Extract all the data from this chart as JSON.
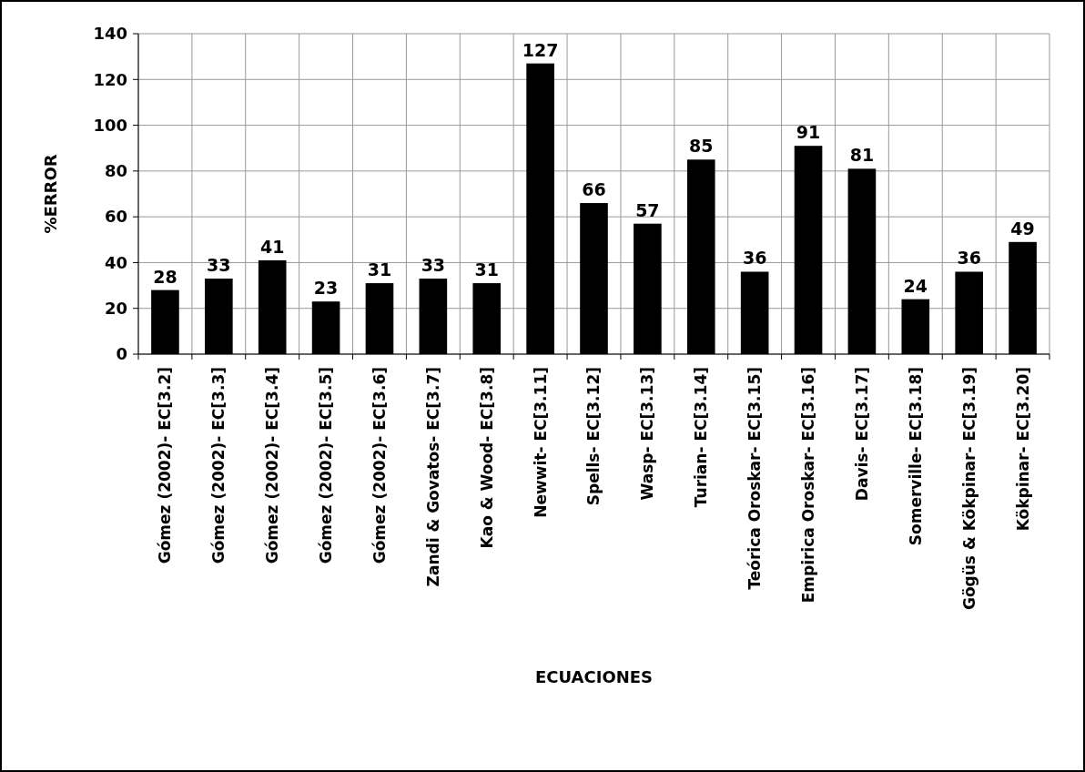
{
  "chart_data": {
    "type": "bar",
    "xlabel": "ECUACIONES",
    "ylabel": "%ERROR",
    "categories": [
      "Gómez (2002)- EC[3.2]",
      "Gómez (2002)- EC[3.3]",
      "Gómez (2002)- EC[3.4]",
      "Gómez (2002)- EC[3.5]",
      "Gómez (2002)- EC[3.6]",
      "Zandi & Govatos- EC[3.7]",
      "Kao & Wood- EC[3.8]",
      "Newwit- EC[3.11]",
      "Spells- EC[3.12]",
      "Wasp- EC[3.13]",
      "Turian- EC[3.14]",
      "Teórica Oroskar- EC[3.15]",
      "Empirica Oroskar- EC[3.16]",
      "Davis- EC[3.17]",
      "Somerville- EC[3.18]",
      "Gögüs & Kökpinar- EC[3.19]",
      "Kökpinar- EC[3.20]"
    ],
    "values": [
      28,
      33,
      41,
      23,
      31,
      33,
      31,
      127,
      66,
      57,
      85,
      36,
      91,
      81,
      24,
      36,
      49
    ],
    "color": "#000000",
    "ylim": [
      0,
      140
    ],
    "yticks": [
      0,
      20,
      40,
      60,
      80,
      100,
      120,
      140
    ],
    "grid": true,
    "data_labels": true
  }
}
